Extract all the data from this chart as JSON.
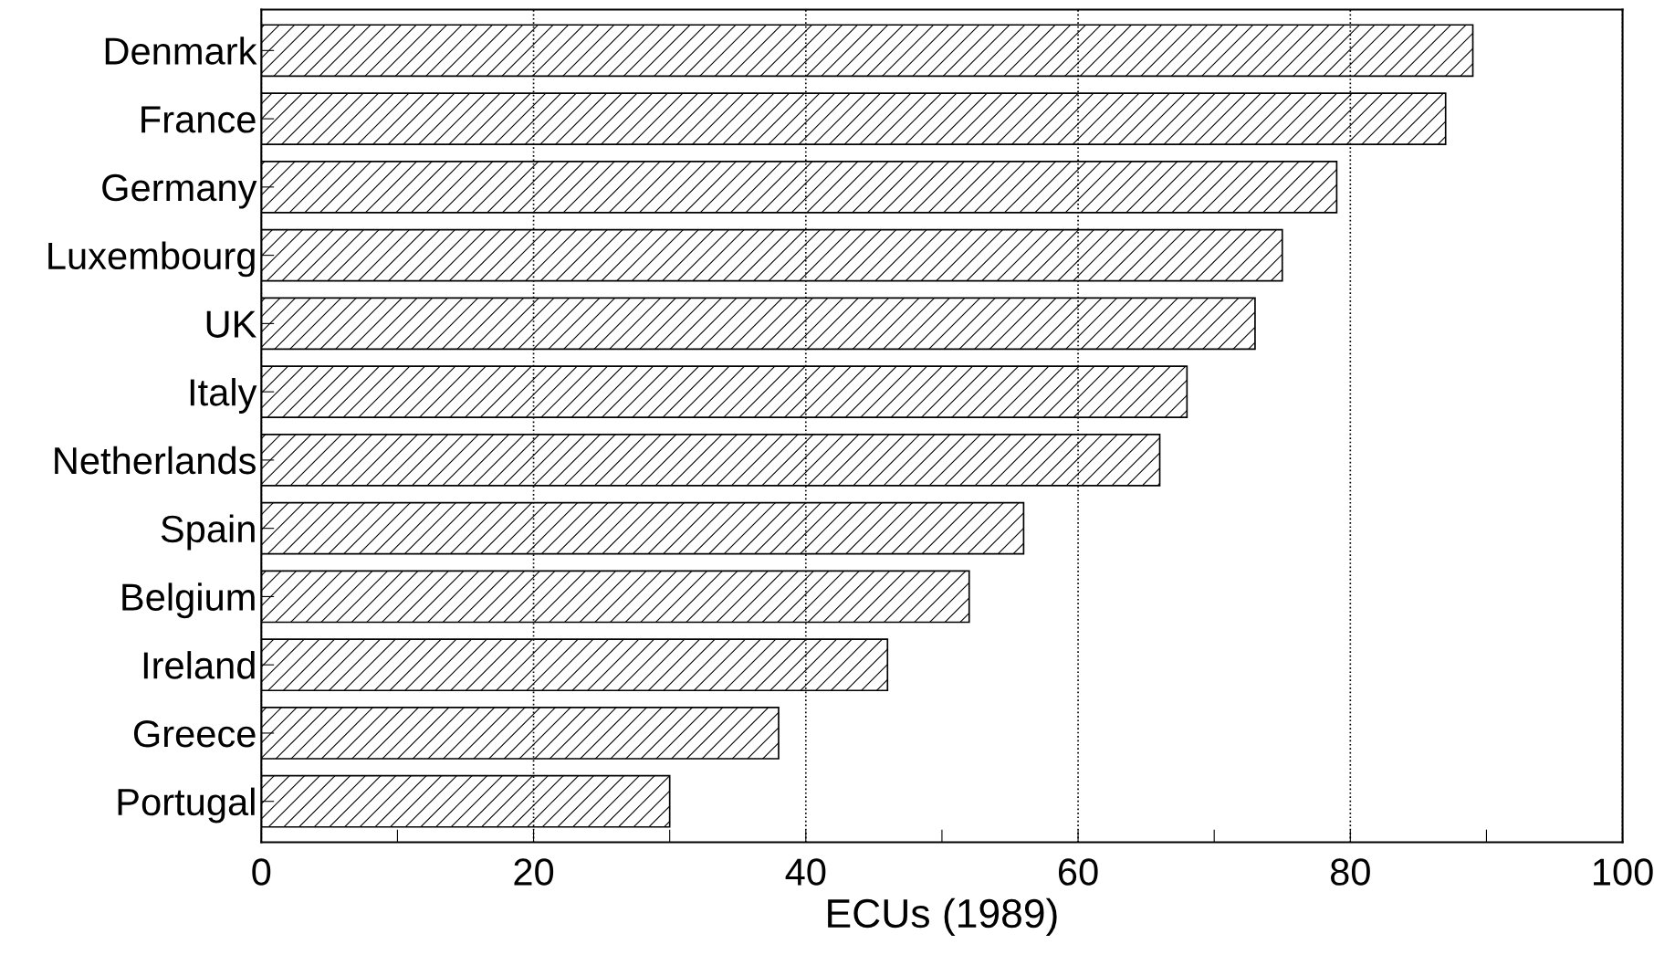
{
  "chart_data": {
    "type": "bar",
    "orientation": "horizontal",
    "xlabel": "ECUs (1989)",
    "categories": [
      "Denmark",
      "France",
      "Germany",
      "Luxembourg",
      "UK",
      "Italy",
      "Netherlands",
      "Spain",
      "Belgium",
      "Ireland",
      "Greece",
      "Portugal"
    ],
    "values": [
      89,
      87,
      79,
      75,
      73,
      68,
      66,
      56,
      52,
      46,
      38,
      30
    ],
    "color": "#000000",
    "xlim": [
      0,
      100
    ],
    "xticks": [
      0,
      {
        "value": 10,
        "label": null
      },
      20,
      {
        "value": 30,
        "label": null
      },
      40,
      {
        "value": 50,
        "label": null
      },
      60,
      {
        "value": 70,
        "label": null
      },
      80,
      {
        "value": 90,
        "label": null
      },
      100
    ],
    "grid": "x"
  }
}
